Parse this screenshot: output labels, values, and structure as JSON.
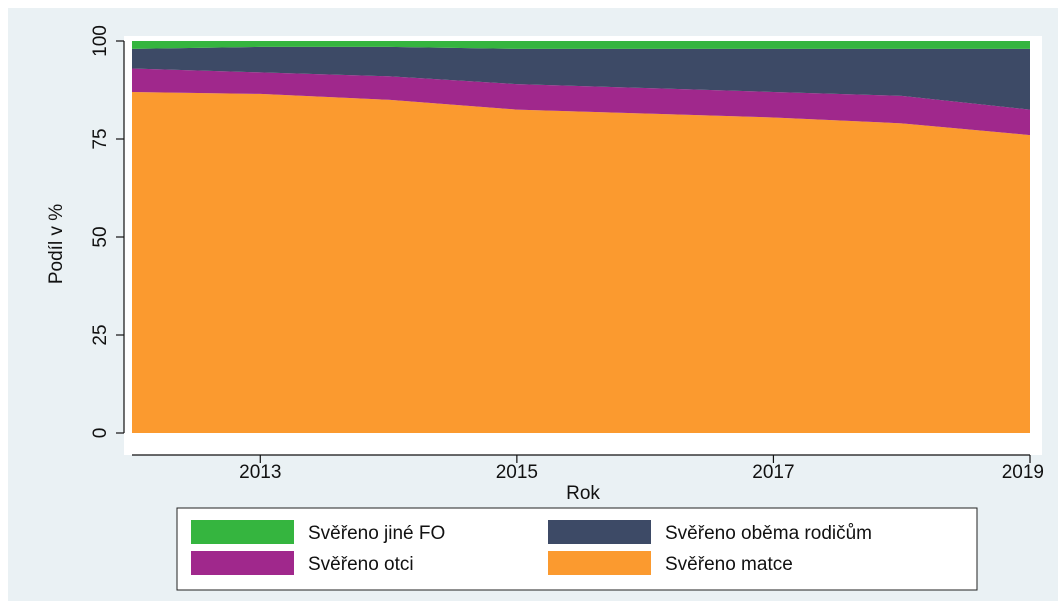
{
  "chart_data": {
    "type": "area",
    "stacked": true,
    "x": [
      2012,
      2013,
      2014,
      2015,
      2016,
      2017,
      2018,
      2019
    ],
    "series": [
      {
        "name": "Svěřeno matce",
        "color": "#fb9a2f",
        "values": [
          87,
          86.5,
          85,
          82.5,
          81.5,
          80.5,
          79,
          76
        ]
      },
      {
        "name": "Svěřeno otci",
        "color": "#a0288c",
        "values": [
          6,
          5.5,
          6,
          6.5,
          6.5,
          6.5,
          7,
          6.5
        ]
      },
      {
        "name": "Svěřeno oběma rodičům",
        "color": "#3d4a66",
        "values": [
          5,
          6.5,
          7.5,
          9,
          10,
          11,
          12,
          15.5
        ]
      },
      {
        "name": "Svěřeno jiné FO",
        "color": "#35b53f",
        "values": [
          2,
          1.5,
          1.5,
          2,
          2,
          2,
          2,
          2
        ]
      }
    ],
    "xlabel": "Rok",
    "ylabel": "Podíl v %",
    "xticks": [
      2013,
      2015,
      2017,
      2019
    ],
    "yticks": [
      0,
      25,
      50,
      75,
      100
    ],
    "xlim": [
      2012,
      2019
    ],
    "ylim": [
      0,
      100
    ],
    "grid": false,
    "legend": {
      "placement": "bottom",
      "order": [
        "Svěřeno jiné FO",
        "Svěřeno oběma rodičům",
        "Svěřeno otci",
        "Svěřeno matce"
      ]
    }
  }
}
